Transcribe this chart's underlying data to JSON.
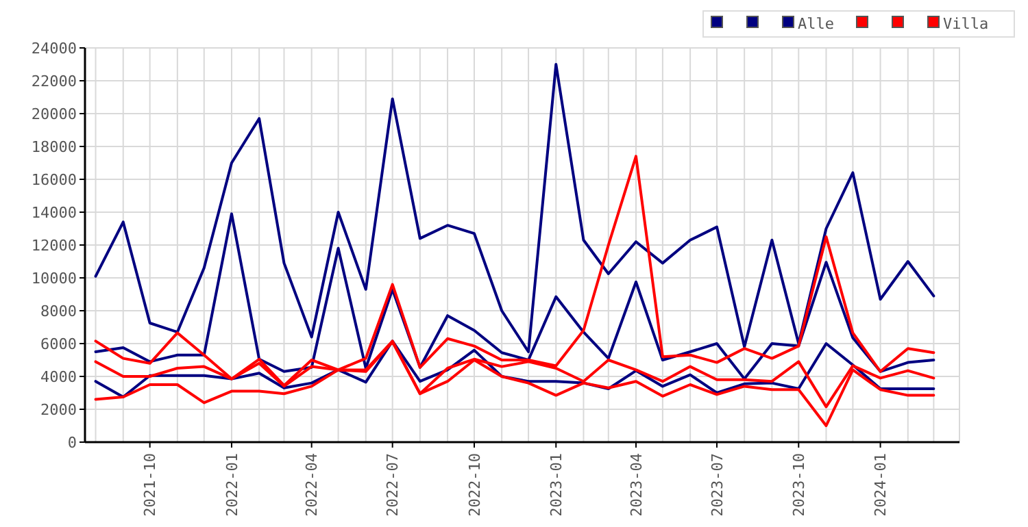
{
  "chart_data": {
    "type": "line",
    "x": [
      "2021-08",
      "2021-09",
      "2021-10",
      "2021-11",
      "2021-12",
      "2022-01",
      "2022-02",
      "2022-03",
      "2022-04",
      "2022-05",
      "2022-06",
      "2022-07",
      "2022-08",
      "2022-09",
      "2022-10",
      "2022-11",
      "2022-12",
      "2023-01",
      "2023-02",
      "2023-03",
      "2023-04",
      "2023-05",
      "2023-06",
      "2023-07",
      "2023-08",
      "2023-09",
      "2023-10",
      "2023-11",
      "2023-12",
      "2024-01",
      "2024-02",
      "2024-03"
    ],
    "series": [
      {
        "color": "#000080",
        "values": [
          3700,
          2750,
          4050,
          4050,
          4050,
          3850,
          4200,
          3300,
          3600,
          4400,
          3650,
          6150,
          3700,
          4400,
          5600,
          4000,
          3700,
          3700,
          3600,
          3250,
          4350,
          3400,
          4100,
          3000,
          3550,
          3600,
          3250,
          6000,
          4700,
          3250,
          3250,
          3250
        ]
      },
      {
        "color": "#000080",
        "values": [
          5500,
          5750,
          4900,
          5300,
          5300,
          13900,
          5050,
          4300,
          4550,
          11800,
          4500,
          9300,
          4550,
          7700,
          6800,
          5450,
          5000,
          8850,
          6700,
          5100,
          9750,
          5000,
          5500,
          6000,
          3850,
          6000,
          5850,
          10950,
          6350,
          4300,
          4850,
          5000
        ]
      },
      {
        "name": "Alle",
        "color": "#000080",
        "values": [
          10100,
          13400,
          7250,
          6700,
          10600,
          17000,
          19700,
          10900,
          6400,
          14000,
          9300,
          20900,
          12400,
          13200,
          12700,
          8000,
          5500,
          23000,
          12300,
          10250,
          12200,
          10900,
          12300,
          13100,
          5800,
          12300,
          6000,
          13000,
          16400,
          8700,
          11000,
          8900
        ]
      },
      {
        "color": "#ff0000",
        "values": [
          2600,
          2750,
          3500,
          3500,
          2400,
          3100,
          3100,
          2950,
          3400,
          4400,
          4300,
          6100,
          2950,
          3700,
          5000,
          4000,
          3600,
          2850,
          3600,
          3300,
          3700,
          2800,
          3500,
          2900,
          3400,
          3200,
          3200,
          1000,
          4400,
          3200,
          2850,
          2850
        ]
      },
      {
        "color": "#ff0000",
        "values": [
          4900,
          4000,
          4000,
          4500,
          4600,
          3850,
          4800,
          3400,
          4600,
          4400,
          4400,
          6150,
          2950,
          4500,
          5050,
          4600,
          4900,
          4500,
          3700,
          5000,
          4400,
          3700,
          4600,
          3800,
          3800,
          3700,
          4900,
          2150,
          4650,
          3900,
          4350,
          3900
        ]
      },
      {
        "name": "Villa",
        "color": "#ff0000",
        "values": [
          6150,
          5100,
          4800,
          6650,
          5300,
          3850,
          5050,
          3450,
          5000,
          4400,
          5100,
          9600,
          4550,
          6300,
          5850,
          5000,
          5000,
          4650,
          6800,
          12000,
          17400,
          5200,
          5300,
          4850,
          5700,
          5100,
          5850,
          12500,
          6650,
          4300,
          5700,
          5450
        ]
      }
    ],
    "xlim": [
      "2021-07-20",
      "2024-03-30"
    ],
    "xticks": [
      {
        "value": "2021-10",
        "label": "2021-10"
      },
      {
        "value": "2022-01",
        "label": "2022-01"
      },
      {
        "value": "2022-04",
        "label": "2022-04"
      },
      {
        "value": "2022-07",
        "label": "2022-07"
      },
      {
        "value": "2022-10",
        "label": "2022-10"
      },
      {
        "value": "2023-01",
        "label": "2023-01"
      },
      {
        "value": "2023-04",
        "label": "2023-04"
      },
      {
        "value": "2023-07",
        "label": "2023-07"
      },
      {
        "value": "2023-10",
        "label": "2023-10"
      },
      {
        "value": "2024-01",
        "label": "2024-01"
      }
    ],
    "ylim": [
      0,
      24000
    ],
    "yticks": [
      0,
      2000,
      4000,
      6000,
      8000,
      10000,
      12000,
      14000,
      16000,
      18000,
      20000,
      22000,
      24000
    ],
    "grid": true,
    "legend": "top right",
    "marker": "none",
    "line_style": "solid"
  }
}
